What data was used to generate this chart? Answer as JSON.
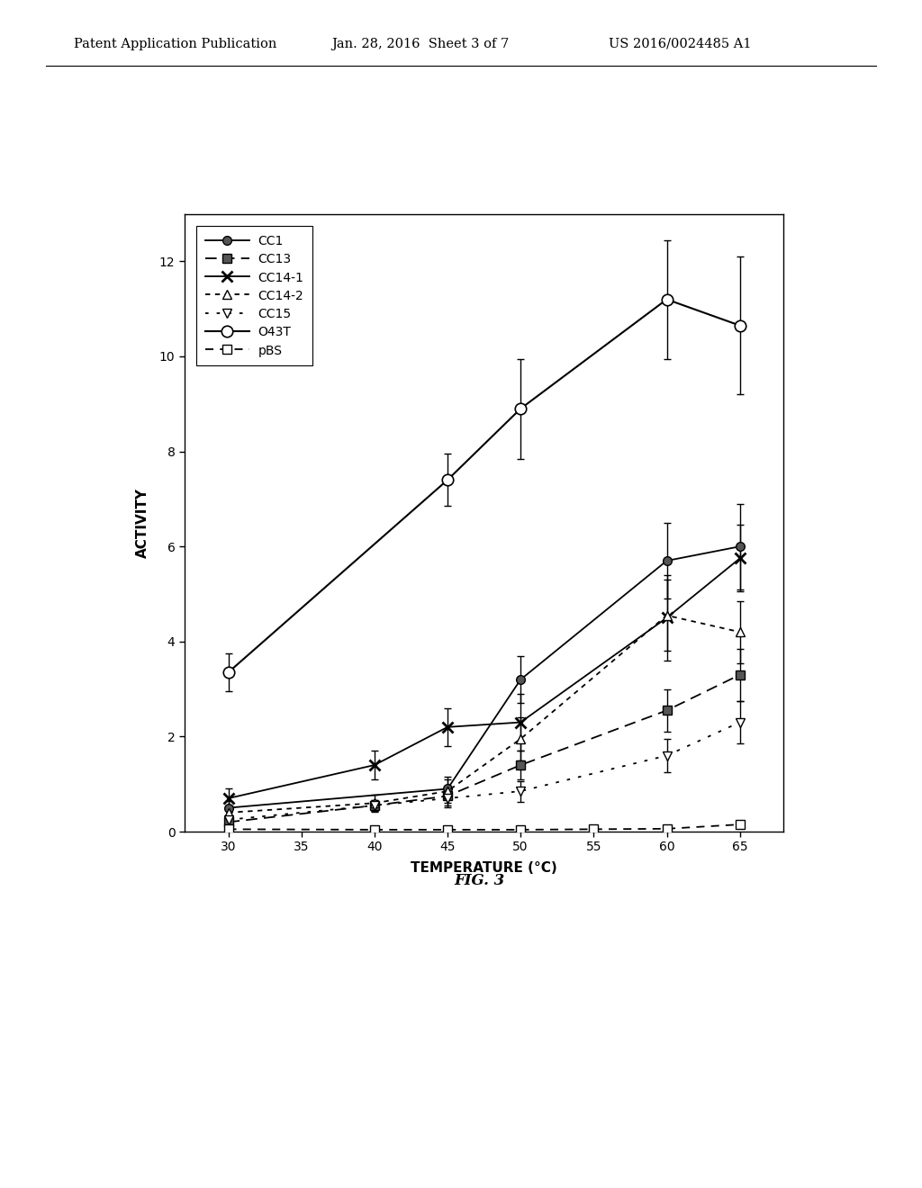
{
  "x_all": [
    30,
    35,
    40,
    45,
    50,
    55,
    60,
    65
  ],
  "series": {
    "CC1": {
      "x": [
        30,
        45,
        50,
        60,
        65
      ],
      "y": [
        0.5,
        0.9,
        3.2,
        5.7,
        6.0
      ],
      "yerr": [
        0.15,
        0.2,
        0.5,
        0.8,
        0.9
      ],
      "linestyle": "-",
      "marker": "o",
      "markerfacecolor": "#555555",
      "markeredgecolor": "#000000",
      "markersize": 7,
      "dashes": null
    },
    "CC13": {
      "x": [
        30,
        40,
        45,
        50,
        60,
        65
      ],
      "y": [
        0.2,
        0.55,
        0.75,
        1.4,
        2.55,
        3.3
      ],
      "yerr": [
        0.1,
        0.12,
        0.15,
        0.3,
        0.45,
        0.55
      ],
      "linestyle": "--",
      "marker": "s",
      "markerfacecolor": "#555555",
      "markeredgecolor": "#000000",
      "markersize": 7,
      "dashes": [
        7,
        4
      ]
    },
    "CC14-1": {
      "x": [
        30,
        40,
        45,
        50,
        60,
        65
      ],
      "y": [
        0.7,
        1.4,
        2.2,
        2.3,
        4.5,
        5.75
      ],
      "yerr": [
        0.2,
        0.3,
        0.4,
        0.6,
        0.9,
        0.7
      ],
      "linestyle": "-",
      "marker": "x",
      "markerfacecolor": "#000000",
      "markeredgecolor": "#000000",
      "markersize": 9,
      "dashes": null
    },
    "CC14-2": {
      "x": [
        30,
        40,
        45,
        50,
        60,
        65
      ],
      "y": [
        0.4,
        0.6,
        0.85,
        1.95,
        4.55,
        4.2
      ],
      "yerr": [
        0.15,
        0.18,
        0.3,
        0.45,
        0.75,
        0.65
      ],
      "linestyle": "--",
      "marker": "^",
      "markerfacecolor": "white",
      "markeredgecolor": "#000000",
      "markersize": 7,
      "dashes": [
        3,
        3
      ]
    },
    "CC15": {
      "x": [
        30,
        40,
        45,
        50,
        60,
        65
      ],
      "y": [
        0.25,
        0.55,
        0.7,
        0.85,
        1.6,
        2.3
      ],
      "yerr": [
        0.08,
        0.12,
        0.18,
        0.22,
        0.35,
        0.45
      ],
      "linestyle": "--",
      "marker": "v",
      "markerfacecolor": "white",
      "markeredgecolor": "#000000",
      "markersize": 7,
      "dashes": [
        2,
        5
      ]
    },
    "O43T": {
      "x": [
        30,
        45,
        50,
        60,
        65
      ],
      "y": [
        3.35,
        7.4,
        8.9,
        11.2,
        10.65
      ],
      "yerr": [
        0.4,
        0.55,
        1.05,
        1.25,
        1.45
      ],
      "linestyle": "-",
      "marker": "o",
      "markerfacecolor": "white",
      "markeredgecolor": "#000000",
      "markersize": 9,
      "dashes": null
    },
    "pBS": {
      "x": [
        30,
        40,
        45,
        50,
        55,
        60,
        65
      ],
      "y": [
        0.05,
        0.04,
        0.04,
        0.04,
        0.05,
        0.06,
        0.15
      ],
      "yerr": [
        0.02,
        0.015,
        0.015,
        0.015,
        0.02,
        0.025,
        0.04
      ],
      "linestyle": "--",
      "marker": "s",
      "markerfacecolor": "white",
      "markeredgecolor": "#000000",
      "markersize": 7,
      "dashes": [
        5,
        4
      ]
    }
  },
  "xlabel": "TEMPERATURE (°C)",
  "ylabel": "ACTIVITY",
  "ylim": [
    0,
    13
  ],
  "xlim": [
    27,
    68
  ],
  "xticks": [
    30,
    35,
    40,
    45,
    50,
    55,
    60,
    65
  ],
  "yticks": [
    0,
    2,
    4,
    6,
    8,
    10,
    12
  ],
  "fig_caption": "FIG. 3",
  "header_left": "Patent Application Publication",
  "header_center": "Jan. 28, 2016  Sheet 3 of 7",
  "header_right": "US 2016/0024485 A1",
  "background_color": "#ffffff",
  "legend_order": [
    "CC1",
    "CC13",
    "CC14-1",
    "CC14-2",
    "CC15",
    "O43T",
    "pBS"
  ]
}
